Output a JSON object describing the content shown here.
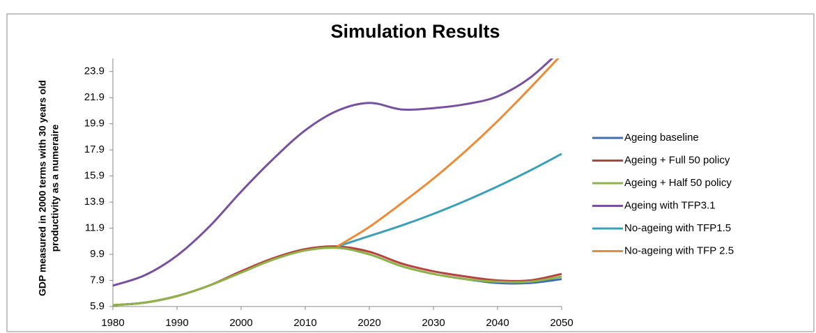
{
  "chart_data": {
    "type": "line",
    "title": "Simulation Results",
    "ylabel": [
      "GDP measured in 2000 terms with 30 years old",
      "productivity as a numeraire"
    ],
    "x": [
      1980,
      1985,
      1990,
      1995,
      2000,
      2005,
      2010,
      2015,
      2020,
      2025,
      2030,
      2035,
      2040,
      2045,
      2050
    ],
    "xlim": [
      1980,
      2050
    ],
    "xticks": [
      1980,
      1990,
      2000,
      2010,
      2020,
      2030,
      2040,
      2050
    ],
    "ylim": [
      5.9,
      24.9
    ],
    "yticks": [
      5.9,
      7.9,
      9.9,
      11.9,
      13.9,
      15.9,
      17.9,
      19.9,
      21.9,
      23.9
    ],
    "legend": "right",
    "series": [
      {
        "name": "Ageing baseline",
        "color": "#3d6fb0",
        "values": [
          6.0,
          6.2,
          6.7,
          7.5,
          8.5,
          9.5,
          10.2,
          10.4,
          9.9,
          9.0,
          8.4,
          8.0,
          7.7,
          7.7,
          8.0
        ]
      },
      {
        "name": "Ageing + Full 50 policy",
        "color": "#b8413d",
        "values": [
          6.0,
          6.2,
          6.7,
          7.5,
          8.6,
          9.6,
          10.3,
          10.5,
          10.1,
          9.2,
          8.6,
          8.2,
          7.9,
          7.9,
          8.4
        ]
      },
      {
        "name": "Ageing + Half 50 policy",
        "color": "#8fb347",
        "values": [
          6.0,
          6.2,
          6.7,
          7.5,
          8.5,
          9.5,
          10.2,
          10.4,
          9.9,
          9.0,
          8.4,
          8.0,
          7.8,
          7.8,
          8.2
        ]
      },
      {
        "name": "Ageing with TFP3.1",
        "color": "#7750a0",
        "values": [
          7.5,
          8.3,
          9.8,
          12.0,
          14.7,
          17.2,
          19.4,
          20.9,
          21.5,
          21.0,
          21.1,
          21.4,
          22.0,
          23.4,
          25.6
        ]
      },
      {
        "name": "No-ageing with TFP1.5",
        "color": "#3aa0b8",
        "values": [
          null,
          null,
          null,
          null,
          null,
          null,
          null,
          10.5,
          11.3,
          12.1,
          13.0,
          14.0,
          15.1,
          16.3,
          17.6
        ]
      },
      {
        "name": "No-ageing with TFP 2.5",
        "color": "#ee8a35",
        "values": [
          null,
          null,
          null,
          null,
          null,
          null,
          null,
          10.5,
          12.0,
          13.8,
          15.7,
          17.8,
          20.1,
          22.6,
          25.2
        ]
      }
    ]
  }
}
